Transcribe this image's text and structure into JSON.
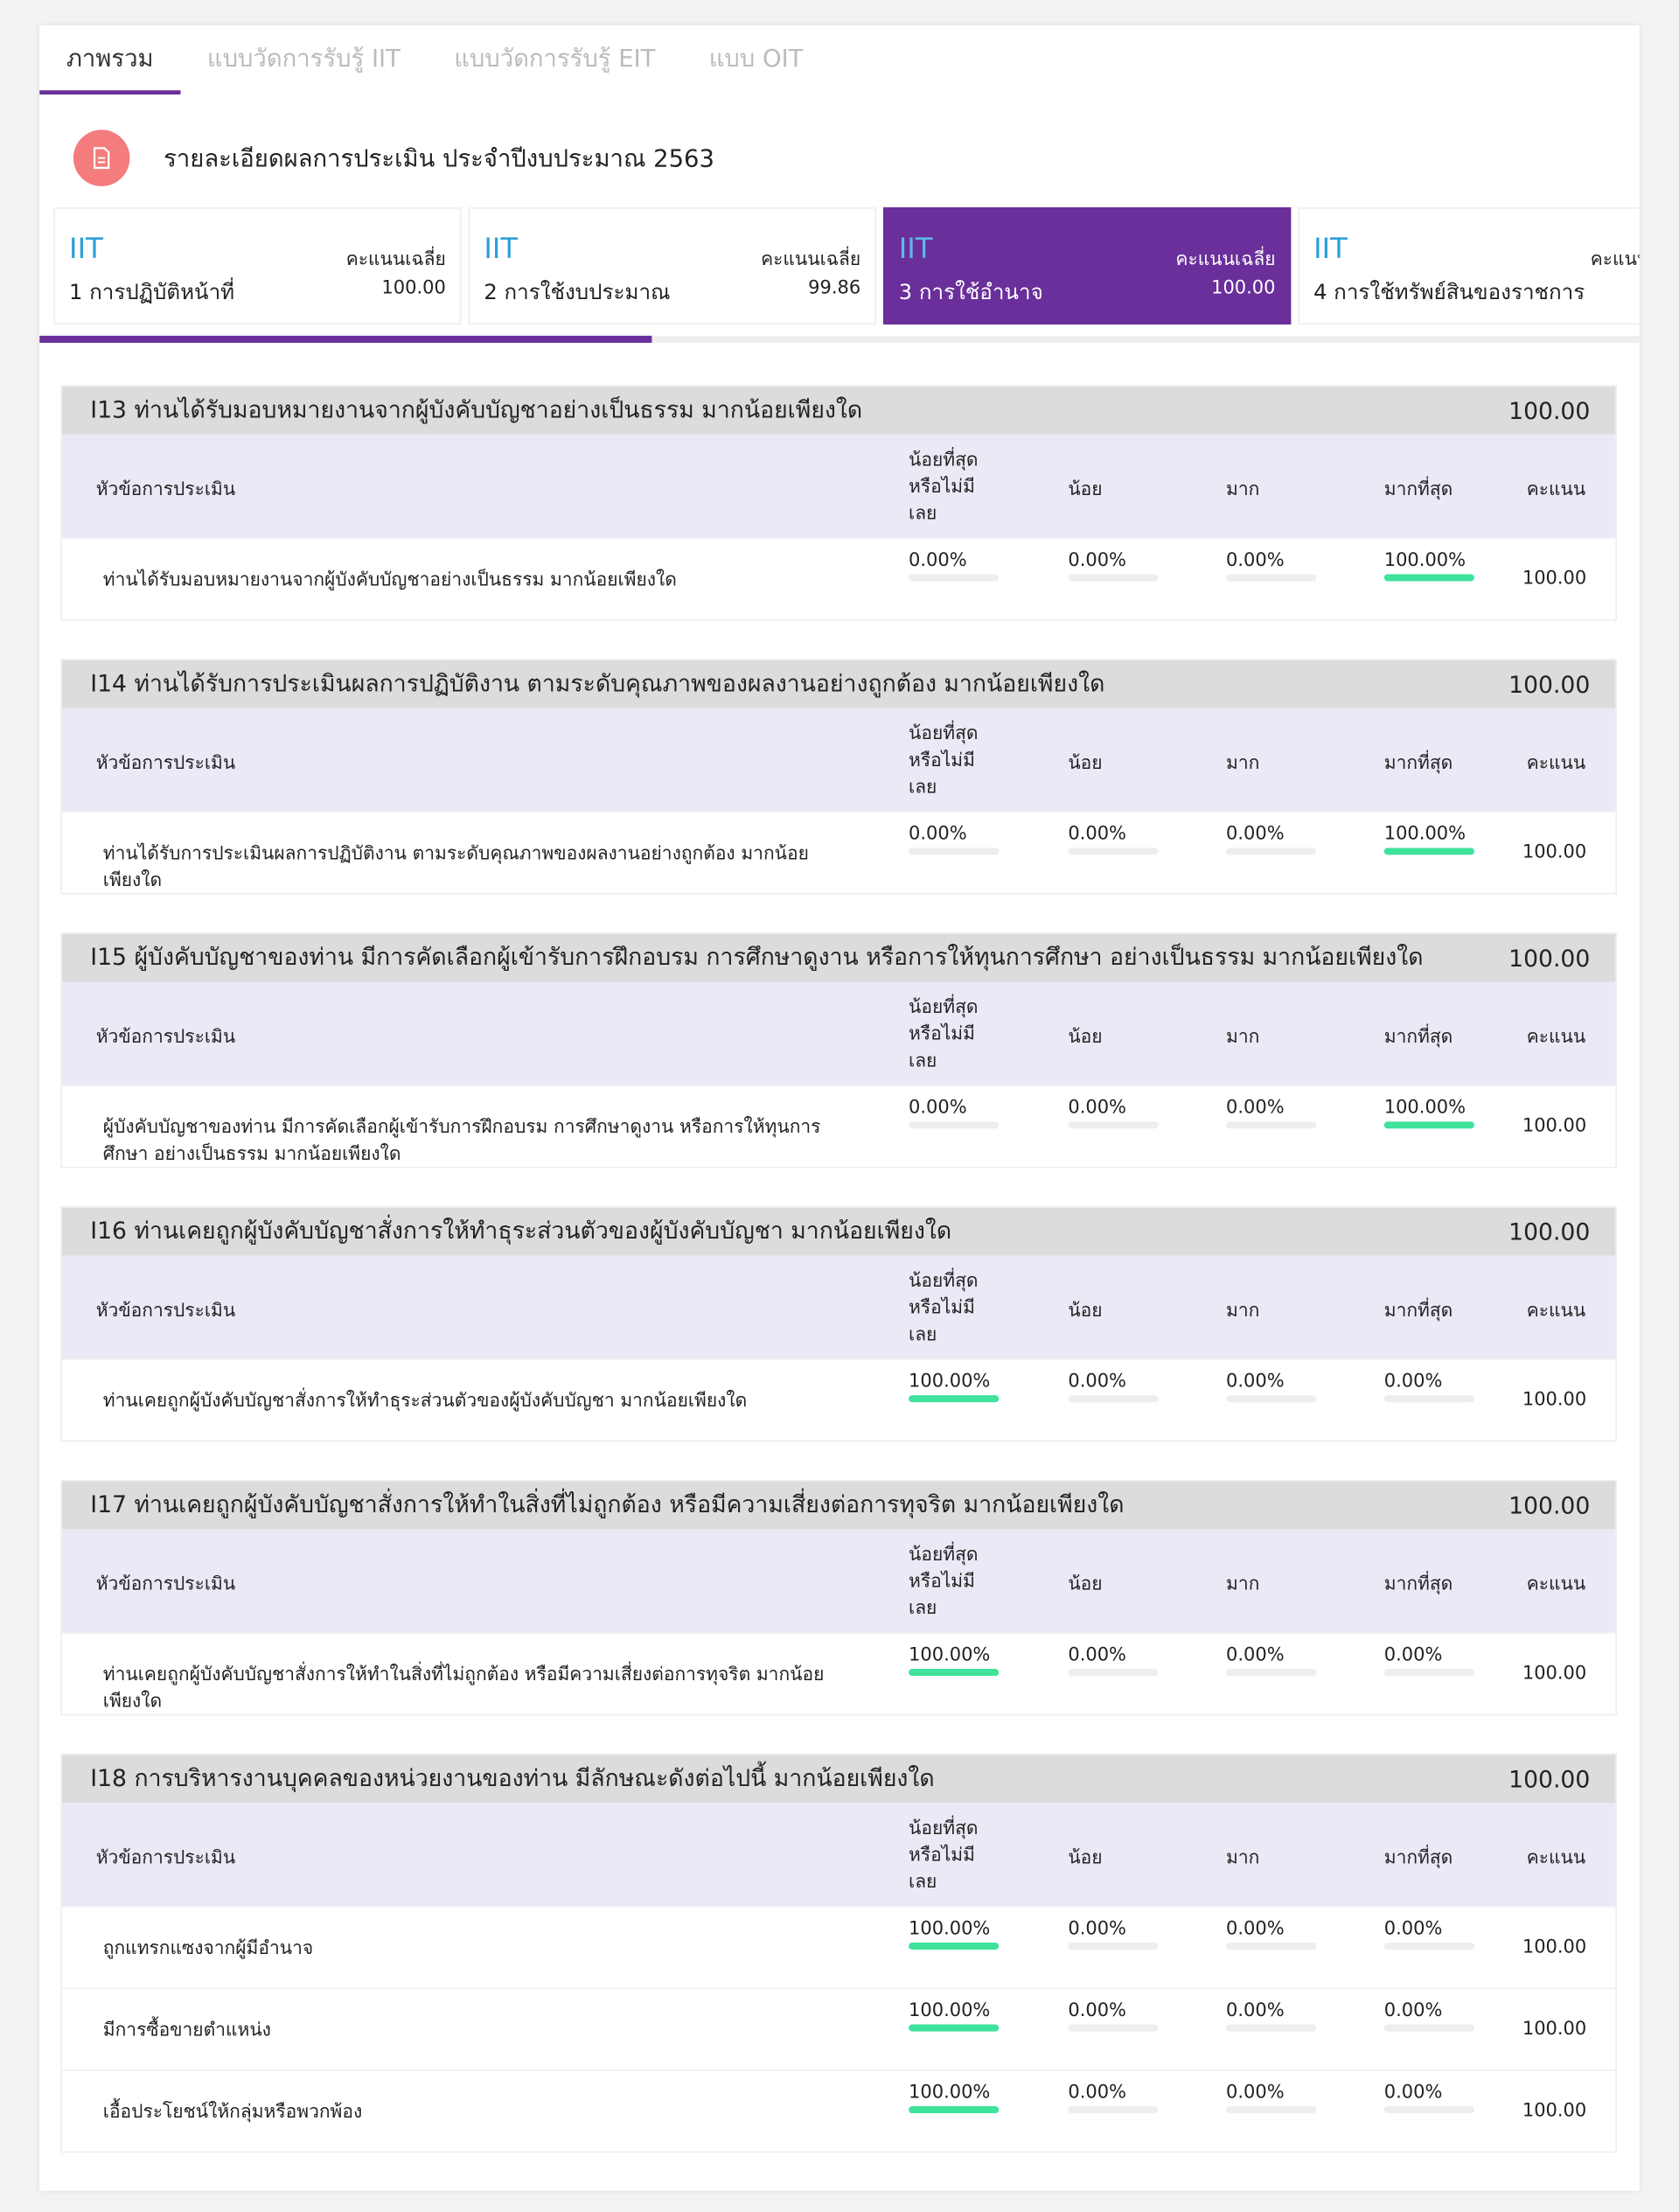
{
  "tabs": [
    "ภาพรวม",
    "แบบวัดการรับรู้ IIT",
    "แบบวัดการรับรู้ EIT",
    "แบบ OIT"
  ],
  "header": {
    "title": "รายละเอียดผลการประเมิน ประจำปีงบประมาณ 2563"
  },
  "cards": [
    {
      "tag": "IIT",
      "label": "คะแนนเฉลี่ย",
      "name": "1 การปฏิบัติหน้าที่",
      "score": "100.00"
    },
    {
      "tag": "IIT",
      "label": "คะแนนเฉลี่ย",
      "name": "2 การใช้งบประมาณ",
      "score": "99.86"
    },
    {
      "tag": "IIT",
      "label": "คะแนนเฉลี่ย",
      "name": "3 การใช้อำนาจ",
      "score": "100.00"
    },
    {
      "tag": "IIT",
      "label": "คะแนนเฉลี่ย",
      "name": "4 การใช้ทรัพย์สินของราชการ"
    }
  ],
  "columns": [
    "หัวข้อการประเมิน",
    "น้อยที่สุดหรือไม่มีเลย",
    "น้อย",
    "มาก",
    "มากที่สุด",
    "คะแนน"
  ],
  "sections": [
    {
      "title": "I13 ท่านได้รับมอบหมายงานจากผู้บังคับบัญชาอย่างเป็นธรรม มากน้อยเพียงใด",
      "score": "100.00",
      "rows": [
        {
          "text": "ท่านได้รับมอบหมายงานจากผู้บังคับบัญชาอย่างเป็นธรรม มากน้อยเพียงใด",
          "values": [
            0,
            0,
            0,
            100
          ],
          "value_labels": [
            "0.00%",
            "0.00%",
            "0.00%",
            "100.00%"
          ],
          "score": "100.00"
        }
      ]
    },
    {
      "title": "I14 ท่านได้รับการประเมินผลการปฏิบัติงาน ตามระดับคุณภาพของผลงานอย่างถูกต้อง มากน้อยเพียงใด",
      "score": "100.00",
      "rows": [
        {
          "text": "ท่านได้รับการประเมินผลการปฏิบัติงาน ตามระดับคุณภาพของผลงานอย่างถูกต้อง มากน้อยเพียงใด",
          "values": [
            0,
            0,
            0,
            100
          ],
          "value_labels": [
            "0.00%",
            "0.00%",
            "0.00%",
            "100.00%"
          ],
          "score": "100.00"
        }
      ]
    },
    {
      "title": "I15 ผู้บังคับบัญชาของท่าน มีการคัดเลือกผู้เข้ารับการฝึกอบรม การศึกษาดูงาน หรือการให้ทุนการศึกษา อย่างเป็นธรรม มากน้อยเพียงใด",
      "score": "100.00",
      "rows": [
        {
          "text": "ผู้บังคับบัญชาของท่าน มีการคัดเลือกผู้เข้ารับการฝึกอบรม การศึกษาดูงาน หรือการให้ทุนการศึกษา อย่างเป็นธรรม มากน้อยเพียงใด",
          "values": [
            0,
            0,
            0,
            100
          ],
          "value_labels": [
            "0.00%",
            "0.00%",
            "0.00%",
            "100.00%"
          ],
          "score": "100.00"
        }
      ]
    },
    {
      "title": "I16 ท่านเคยถูกผู้บังคับบัญชาสั่งการให้ทำธุระส่วนตัวของผู้บังคับบัญชา มากน้อยเพียงใด",
      "score": "100.00",
      "rows": [
        {
          "text": "ท่านเคยถูกผู้บังคับบัญชาสั่งการให้ทำธุระส่วนตัวของผู้บังคับบัญชา มากน้อยเพียงใด",
          "values": [
            100,
            0,
            0,
            0
          ],
          "value_labels": [
            "100.00%",
            "0.00%",
            "0.00%",
            "0.00%"
          ],
          "score": "100.00"
        }
      ]
    },
    {
      "title": "I17 ท่านเคยถูกผู้บังคับบัญชาสั่งการให้ทำในสิ่งที่ไม่ถูกต้อง หรือมีความเสี่ยงต่อการทุจริต มากน้อยเพียงใด",
      "score": "100.00",
      "rows": [
        {
          "text": "ท่านเคยถูกผู้บังคับบัญชาสั่งการให้ทำในสิ่งที่ไม่ถูกต้อง หรือมีความเสี่ยงต่อการทุจริต มากน้อยเพียงใด",
          "values": [
            100,
            0,
            0,
            0
          ],
          "value_labels": [
            "100.00%",
            "0.00%",
            "0.00%",
            "0.00%"
          ],
          "score": "100.00"
        }
      ]
    },
    {
      "title": "I18 การบริหารงานบุคคลของหน่วยงานของท่าน มีลักษณะดังต่อไปนี้ มากน้อยเพียงใด",
      "score": "100.00",
      "rows": [
        {
          "text": "ถูกแทรกแซงจากผู้มีอำนาจ",
          "values": [
            100,
            0,
            0,
            0
          ],
          "value_labels": [
            "100.00%",
            "0.00%",
            "0.00%",
            "0.00%"
          ],
          "score": "100.00"
        },
        {
          "text": "มีการซื้อขายตำแหน่ง",
          "values": [
            100,
            0,
            0,
            0
          ],
          "value_labels": [
            "100.00%",
            "0.00%",
            "0.00%",
            "0.00%"
          ],
          "score": "100.00"
        },
        {
          "text": "เอื้อประโยชน์ให้กลุ่มหรือพวกพ้อง",
          "values": [
            100,
            0,
            0,
            0
          ],
          "value_labels": [
            "100.00%",
            "0.00%",
            "0.00%",
            "0.00%"
          ],
          "score": "100.00"
        }
      ]
    }
  ]
}
